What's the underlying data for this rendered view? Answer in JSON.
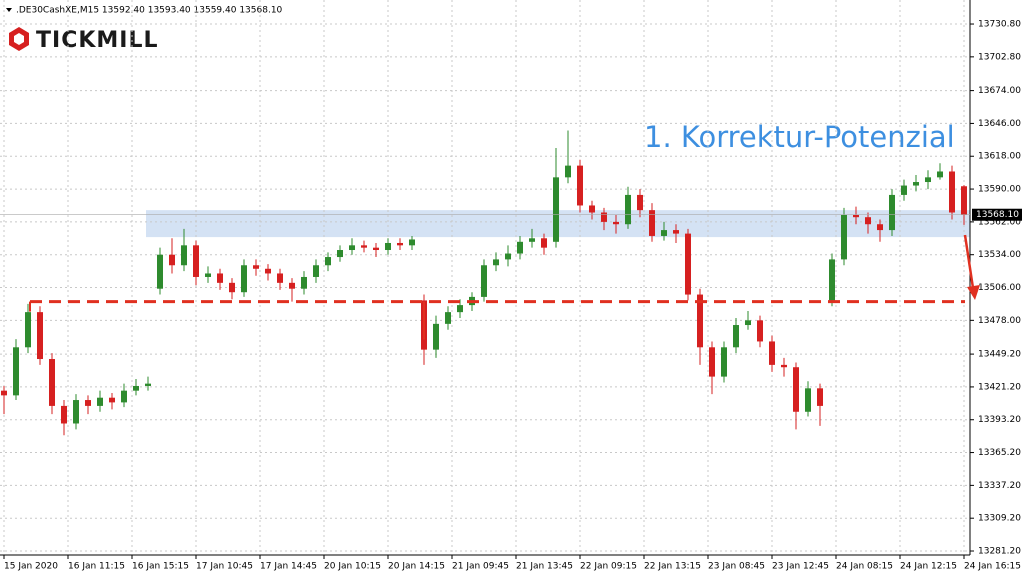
{
  "brand": "TICKMILL",
  "chart_data": {
    "type": "candlestick",
    "info": ".DE30CashXE,M15  13592.40 13593.40 13559.40 13568.10",
    "annotation": "1. Korrektur-Potenzial",
    "up_color": "#2e8b2e",
    "down_color": "#d62020",
    "grid": true,
    "xlim": [
      -1,
      241.5
    ],
    "ylim": [
      13277.8,
      13751.3
    ],
    "xticks": [
      {
        "value": 0,
        "label": "15 Jan 2020"
      },
      {
        "value": 16,
        "label": "16 Jan 11:15"
      },
      {
        "value": 32,
        "label": "16 Jan 15:15"
      },
      {
        "value": 48,
        "label": "17 Jan 10:45"
      },
      {
        "value": 64,
        "label": "17 Jan 14:45"
      },
      {
        "value": 80,
        "label": "20 Jan 10:15"
      },
      {
        "value": 96,
        "label": "20 Jan 14:15"
      },
      {
        "value": 112,
        "label": "21 Jan 09:45"
      },
      {
        "value": 128,
        "label": "21 Jan 13:45"
      },
      {
        "value": 144,
        "label": "22 Jan 09:15"
      },
      {
        "value": 160,
        "label": "22 Jan 13:15"
      },
      {
        "value": 176,
        "label": "23 Jan 08:45"
      },
      {
        "value": 192,
        "label": "23 Jan 12:45"
      },
      {
        "value": 208,
        "label": "24 Jan 08:15"
      },
      {
        "value": 224,
        "label": "24 Jan 12:15"
      },
      {
        "value": 240,
        "label": "24 Jan 16:15"
      }
    ],
    "yticks": [
      {
        "value": 13730.8,
        "label": "13730.80"
      },
      {
        "value": 13702.8,
        "label": "13702.80"
      },
      {
        "value": 13674,
        "label": "13674.00"
      },
      {
        "value": 13646,
        "label": "13646.00"
      },
      {
        "value": 13618,
        "label": "13618.00"
      },
      {
        "value": 13590,
        "label": "13590.00"
      },
      {
        "value": 13562,
        "label": "13562.00"
      },
      {
        "value": 13534,
        "label": "13534.00"
      },
      {
        "value": 13506,
        "label": "13506.00"
      },
      {
        "value": 13478,
        "label": "13478.00"
      },
      {
        "value": 13449.2,
        "label": "13449.20"
      },
      {
        "value": 13421.2,
        "label": "13421.20"
      },
      {
        "value": 13393.2,
        "label": "13393.20"
      },
      {
        "value": 13365.2,
        "label": "13365.20"
      },
      {
        "value": 13337.2,
        "label": "13337.20"
      },
      {
        "value": 13309.2,
        "label": "13309.20"
      },
      {
        "value": 13281.2,
        "label": "13281.20"
      }
    ],
    "current_price": {
      "value": 13568.1,
      "label": "13568.10"
    },
    "zone": [
      13549,
      13572
    ],
    "support_level": 13494,
    "x": [
      0,
      3,
      6,
      9,
      12,
      15,
      18,
      21,
      24,
      27,
      30,
      33,
      36,
      39,
      42,
      45,
      48,
      51,
      54,
      57,
      60,
      63,
      66,
      69,
      72,
      75,
      78,
      81,
      84,
      87,
      90,
      93,
      96,
      99,
      102,
      105,
      108,
      111,
      114,
      117,
      120,
      123,
      126,
      129,
      132,
      135,
      138,
      141,
      144,
      147,
      150,
      153,
      156,
      159,
      162,
      165,
      168,
      171,
      174,
      177,
      180,
      183,
      186,
      189,
      192,
      195,
      198,
      201,
      204,
      207,
      210,
      213,
      216,
      219,
      222,
      225,
      228,
      231,
      234,
      237,
      240
    ],
    "open": [
      13418,
      13414,
      13455,
      13485,
      13445,
      13405,
      13390,
      13410,
      13405,
      13412,
      13408,
      13418,
      13422,
      13505,
      13534,
      13525,
      13542,
      13515,
      13518,
      13510,
      13502,
      13525,
      13522,
      13518,
      13510,
      13505,
      13515,
      13525,
      13532,
      13538,
      13542,
      13540,
      13538,
      13544,
      13542,
      13495,
      13453,
      13475,
      13485,
      13491,
      13498,
      13525,
      13530,
      13535,
      13545,
      13548,
      13545,
      13600,
      13610,
      13576,
      13570,
      13562,
      13560,
      13585,
      13572,
      13550,
      13555,
      13552,
      13500,
      13455,
      13430,
      13455,
      13474,
      13478,
      13460,
      13440,
      13438,
      13400,
      13420,
      13495,
      13530,
      13568,
      13566,
      13560,
      13555,
      13585,
      13593,
      13596,
      13600,
      13605,
      13592.4
    ],
    "high": [
      13422,
      13462,
      13492,
      13490,
      13450,
      13410,
      13415,
      13414,
      13418,
      13416,
      13424,
      13428,
      13430,
      13540,
      13548,
      13556,
      13546,
      13524,
      13522,
      13514,
      13530,
      13530,
      13526,
      13522,
      13514,
      13520,
      13530,
      13536,
      13542,
      13548,
      13546,
      13544,
      13548,
      13548,
      13550,
      13500,
      13482,
      13490,
      13496,
      13502,
      13530,
      13536,
      13542,
      13550,
      13556,
      13552,
      13625,
      13640,
      13615,
      13580,
      13574,
      13568,
      13592,
      13590,
      13578,
      13562,
      13560,
      13556,
      13505,
      13460,
      13460,
      13480,
      13486,
      13482,
      13465,
      13446,
      13442,
      13426,
      13424,
      13535,
      13574,
      13575,
      13570,
      13564,
      13590,
      13598,
      13602,
      13606,
      13612,
      13610,
      13593.4
    ],
    "low": [
      13398,
      13410,
      13450,
      13440,
      13398,
      13380,
      13385,
      13398,
      13400,
      13402,
      13404,
      13414,
      13418,
      13500,
      13518,
      13520,
      13508,
      13510,
      13504,
      13496,
      13498,
      13516,
      13512,
      13504,
      13494,
      13500,
      13510,
      13520,
      13528,
      13534,
      13536,
      13532,
      13534,
      13538,
      13538,
      13440,
      13446,
      13470,
      13480,
      13486,
      13494,
      13520,
      13524,
      13530,
      13540,
      13534,
      13540,
      13595,
      13570,
      13564,
      13555,
      13552,
      13556,
      13566,
      13545,
      13546,
      13544,
      13495,
      13440,
      13415,
      13425,
      13450,
      13470,
      13455,
      13434,
      13430,
      13385,
      13396,
      13388,
      13490,
      13525,
      13560,
      13552,
      13545,
      13550,
      13580,
      13588,
      13590,
      13598,
      13564,
      13559.4
    ],
    "close": [
      13414,
      13455,
      13485,
      13445,
      13405,
      13390,
      13410,
      13405,
      13412,
      13408,
      13418,
      13422,
      13424,
      13534,
      13525,
      13542,
      13515,
      13518,
      13510,
      13502,
      13525,
      13522,
      13518,
      13510,
      13505,
      13515,
      13525,
      13532,
      13538,
      13542,
      13540,
      13538,
      13544,
      13542,
      13547,
      13453,
      13475,
      13485,
      13491,
      13498,
      13525,
      13530,
      13535,
      13545,
      13548,
      13540,
      13600,
      13610,
      13576,
      13570,
      13562,
      13560,
      13585,
      13572,
      13550,
      13555,
      13552,
      13500,
      13455,
      13430,
      13455,
      13474,
      13478,
      13460,
      13440,
      13438,
      13400,
      13420,
      13405,
      13530,
      13568,
      13566,
      13560,
      13555,
      13585,
      13593,
      13596,
      13600,
      13605,
      13570,
      13568.1
    ]
  }
}
